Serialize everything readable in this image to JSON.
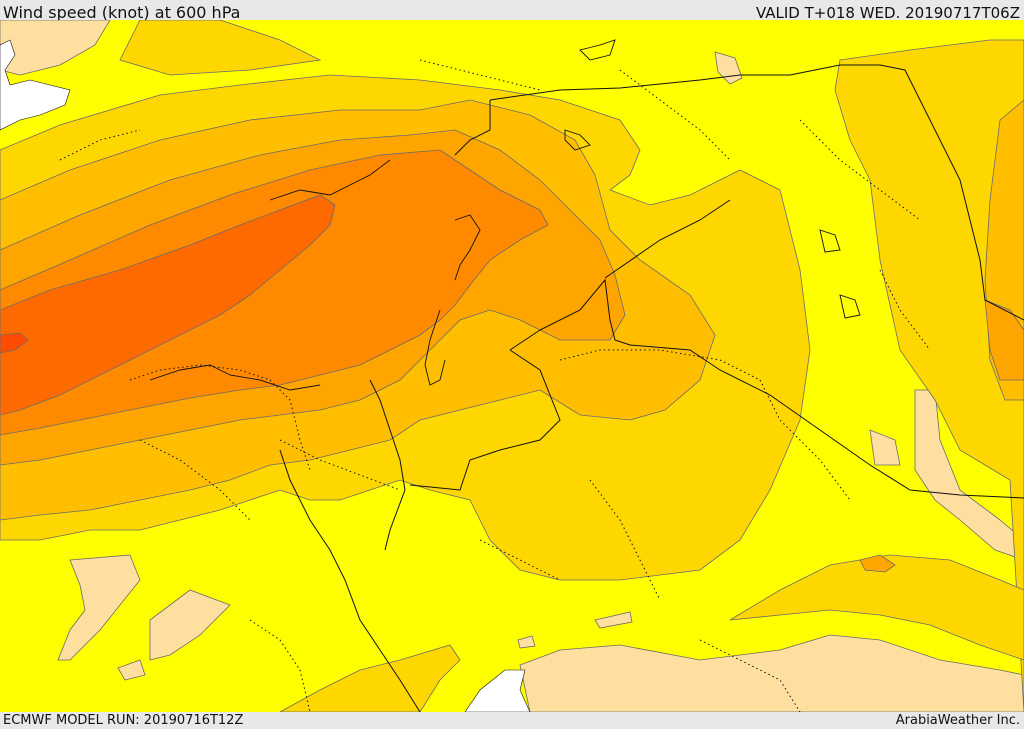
{
  "header": {
    "title": "Wind speed (knot) at 600 hPa",
    "valid_time": "VALID T+018 WED. 20190717T06Z"
  },
  "footer": {
    "model_run": "ECMWF MODEL RUN: 20190716T12Z",
    "credit": "ArabiaWeather Inc."
  },
  "map": {
    "field": "wind speed",
    "level": "600 hPa",
    "units": "knot",
    "colors": {
      "band_lowest": "#ffdfa0",
      "band_1": "#ffff00",
      "band_2": "#ffd700",
      "band_3": "#ffbf00",
      "band_4": "#ffa500",
      "band_5": "#ff8a00",
      "band_6": "#ff6a00",
      "band_7": "#ff4c00",
      "sea_white": "#ffffff",
      "contour_line": "#6b6b6b",
      "border_line": "#111111"
    }
  }
}
